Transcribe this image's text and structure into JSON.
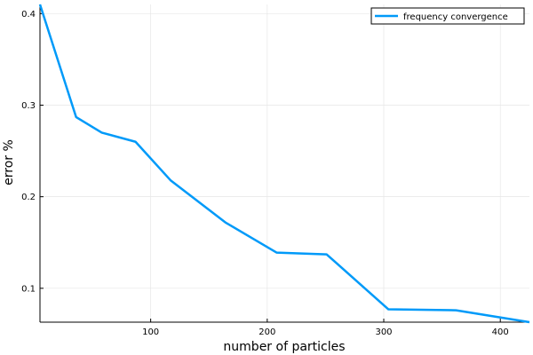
{
  "chart_data": {
    "type": "line",
    "xlabel": "number of particles",
    "ylabel": "error %",
    "xlim": [
      5,
      425
    ],
    "ylim": [
      0.063,
      0.41
    ],
    "x_ticks": [
      100,
      200,
      300,
      400
    ],
    "y_ticks": [
      0.1,
      0.2,
      0.3,
      0.4
    ],
    "x_tick_labels": [
      "100",
      "200",
      "300",
      "400"
    ],
    "y_tick_labels": [
      "0.1",
      "0.2",
      "0.3",
      "0.4"
    ],
    "grid": true,
    "legend_position": "top-right",
    "series": [
      {
        "name": "frequency convergence",
        "color": "#009af9",
        "x": [
          5,
          36,
          58,
          87,
          117,
          164,
          208,
          251,
          304,
          362,
          425
        ],
        "y": [
          0.41,
          0.287,
          0.27,
          0.26,
          0.218,
          0.172,
          0.139,
          0.137,
          0.077,
          0.076,
          0.063
        ]
      }
    ]
  }
}
